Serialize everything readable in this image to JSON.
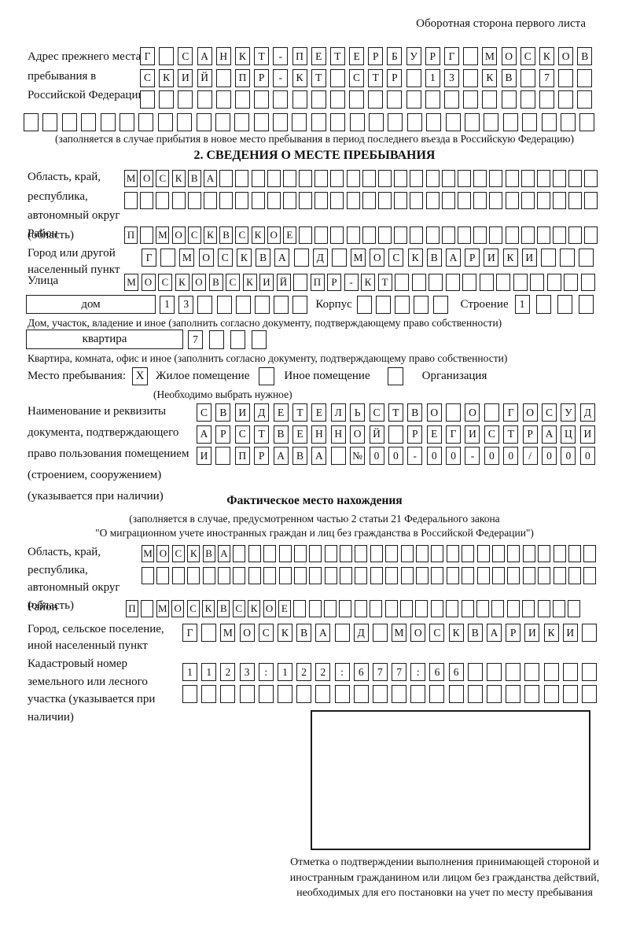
{
  "header_note": "Оборотная сторона первого листа",
  "prev_address": {
    "label": "Адрес прежнего места пребывания в Российской Федерации",
    "rows": [
      "Г САНКТ-ПЕТЕРБУРГ МОСКОВ",
      "СКИЙ ПР-КТ СТР 13 КВ 7  ",
      "                        "
    ],
    "row_full": "                              ",
    "caption": "(заполняется в случае прибытия в новое место пребывания в период последнего въезда в Российскую Федерацию)"
  },
  "section2": {
    "title": "2. СВЕДЕНИЯ О МЕСТЕ ПРЕБЫВАНИЯ",
    "oblast": {
      "label": "Область, край, республика, автономный округ (область)",
      "rows": [
        "МОСКВА                        ",
        "                              "
      ]
    },
    "rayon": {
      "label": "Район",
      "row": "П МОСКВСКОЕ                   "
    },
    "gorod": {
      "label": "Город или другой населенный пункт",
      "row": "Г МОСКВА Д МОСКВАРИКИ   "
    },
    "ulitsa": {
      "label": "Улица",
      "row": "МОСКОВСКИЙ ПР-КТ            "
    },
    "dom": {
      "box_label": "дом",
      "cells": "13      ",
      "korpus_label": "Корпус",
      "korpus_cells": "     ",
      "stroenie_label": "Строение",
      "stroenie_cells": "1   ",
      "caption": "Дом, участок, владение и иное (заполнить согласно документу, подтверждающему право собственности)"
    },
    "kvartira": {
      "box_label": "квартира",
      "first_cell": "7",
      "rest_cells": "   ",
      "caption": "Квартира, комната, офис и иное (заполнить согласно документу, подтверждающему право собственности)"
    },
    "mesto": {
      "label": "Место пребывания:",
      "options": [
        {
          "mark": "X",
          "label": "Жилое помещение"
        },
        {
          "mark": "",
          "label": "Иное помещение"
        },
        {
          "mark": "",
          "label": "Организация"
        }
      ],
      "note": "(Необходимо выбрать нужное)"
    },
    "doc": {
      "label": "Наименование и реквизиты документа, подтверждающего право пользования помещением (строением, сооружением) (указывается при наличии)",
      "rows": [
        "СВИДЕТЕЛЬСТВО О ГОСУД",
        "АРСТВЕННОЙ РЕГИСТРАЦИ",
        "И ПРАВА №00-00-00/000"
      ]
    }
  },
  "fakt": {
    "title": "Фактическое место нахождения",
    "caption1": "(заполняется в случае, предусмотренном частью 2 статьи 21 Федерального закона",
    "caption2": "\"О миграционном учете иностранных граждан и лиц без гражданства в Российской Федерации\")",
    "oblast": {
      "label": "Область, край, республика, автономный округ (область)",
      "rows": [
        "МОСКВА                        ",
        "                              "
      ]
    },
    "rayon": {
      "label": "Район",
      "row": "П МОСКВСКОЕ                   "
    },
    "gorod": {
      "label": "Город, сельское поселение, иной населенный пункт",
      "row": "Г МОСКВА Д МОСКВАРИКИ "
    },
    "kadastr": {
      "label": "Кадастровый номер земельного или лесного участка (указывается при наличии)",
      "rows": [
        "1123:122:677:66       ",
        "                      "
      ]
    },
    "stamp_caption": "Отметка о подтверждении выполнения принимающей стороной и иностранным гражданином или лицом без гражданства действий, необходимых для его постановки на учет по месту пребывания"
  }
}
